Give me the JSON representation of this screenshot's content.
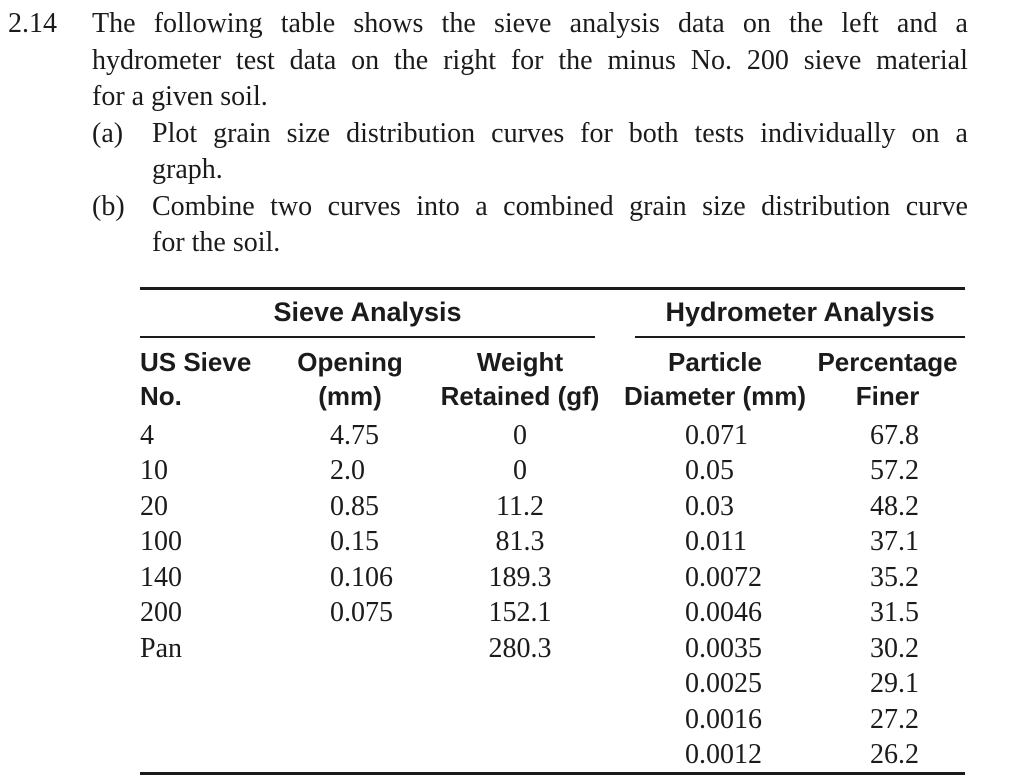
{
  "problem": {
    "number": "2.14",
    "statement_lines": [
      "The following table shows the sieve analysis data on the left and a",
      "hydrometer test data on the right for the minus No. 200 sieve material",
      "for a given soil."
    ],
    "parts": [
      {
        "label": "(a)",
        "lines": [
          "Plot grain size distribution curves for both tests individually on a",
          "graph."
        ]
      },
      {
        "label": "(b)",
        "lines": [
          "Combine two curves into a combined grain size distribution curve",
          "for the soil."
        ]
      }
    ]
  },
  "table": {
    "groups": [
      {
        "title": "Sieve Analysis"
      },
      {
        "title": "Hydrometer Analysis"
      }
    ],
    "columns": [
      {
        "line1": "US Sieve",
        "line2": "No."
      },
      {
        "line1": "Opening",
        "line2": "(mm)"
      },
      {
        "line1": "Weight",
        "line2": "Retained (gf)"
      },
      {
        "line1": "Particle",
        "line2": "Diameter (mm)"
      },
      {
        "line1": "Percentage",
        "line2": "Finer"
      }
    ],
    "rows": [
      [
        "4",
        "4.75",
        "0",
        "0.071",
        "67.8"
      ],
      [
        "10",
        "2.0",
        "0",
        "0.05",
        "57.2"
      ],
      [
        "20",
        "0.85",
        "11.2",
        "0.03",
        "48.2"
      ],
      [
        "100",
        "0.15",
        "81.3",
        "0.011",
        "37.1"
      ],
      [
        "140",
        "0.106",
        "189.3",
        "0.0072",
        "35.2"
      ],
      [
        "200",
        "0.075",
        "152.1",
        "0.0046",
        "31.5"
      ],
      [
        "Pan",
        "",
        "280.3",
        "0.0035",
        "30.2"
      ],
      [
        "",
        "",
        "",
        "0.0025",
        "29.1"
      ],
      [
        "",
        "",
        "",
        "0.0016",
        "27.2"
      ],
      [
        "",
        "",
        "",
        "0.0012",
        "26.2"
      ]
    ]
  },
  "colors": {
    "text": "#1b1b1b",
    "rule": "#1b1b1b",
    "background": "#ffffff"
  }
}
